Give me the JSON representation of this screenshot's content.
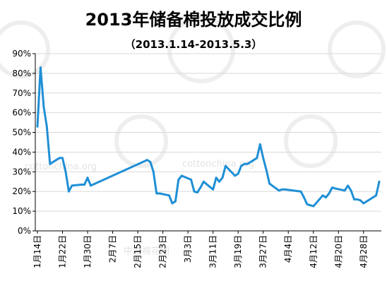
{
  "chart_data": {
    "type": "line",
    "title": "2013年储备棉投放成交比例",
    "subtitle": "（2013.1.14-2013.5.3）",
    "xlabel": "",
    "ylabel": "",
    "ylim": [
      0,
      90
    ],
    "y_ticks": [
      0,
      10,
      20,
      30,
      40,
      50,
      60,
      70,
      80,
      90
    ],
    "y_tick_labels": [
      "0%",
      "10%",
      "20%",
      "30%",
      "40%",
      "50%",
      "60%",
      "70%",
      "80%",
      "90%"
    ],
    "x_start": "2013-01-14",
    "x_end": "2013-05-03",
    "x_tick_dates": [
      "2013-01-14",
      "2013-01-22",
      "2013-01-30",
      "2013-02-07",
      "2013-02-15",
      "2013-02-23",
      "2013-03-03",
      "2013-03-11",
      "2013-03-19",
      "2013-03-27",
      "2013-04-04",
      "2013-04-12",
      "2013-04-20",
      "2013-04-28"
    ],
    "x_tick_labels": [
      "1月14日",
      "1月22日",
      "1月30日",
      "2月7日",
      "2月15日",
      "2月23日",
      "3月3日",
      "3月11日",
      "3月19日",
      "3月27日",
      "4月4日",
      "4月12日",
      "4月20日",
      "4月28日"
    ],
    "grid": true,
    "legend": "none",
    "series": [
      {
        "color": "#1f8fd6",
        "x": [
          "2013-01-14",
          "2013-01-15",
          "2013-01-16",
          "2013-01-17",
          "2013-01-18",
          "2013-01-21",
          "2013-01-22",
          "2013-01-23",
          "2013-01-24",
          "2013-01-25",
          "2013-01-28",
          "2013-01-29",
          "2013-01-30",
          "2013-01-31",
          "2013-02-18",
          "2013-02-19",
          "2013-02-20",
          "2013-02-21",
          "2013-02-22",
          "2013-02-25",
          "2013-02-26",
          "2013-02-27",
          "2013-02-28",
          "2013-03-01",
          "2013-03-04",
          "2013-03-05",
          "2013-03-06",
          "2013-03-07",
          "2013-03-08",
          "2013-03-11",
          "2013-03-12",
          "2013-03-13",
          "2013-03-14",
          "2013-03-15",
          "2013-03-18",
          "2013-03-19",
          "2013-03-20",
          "2013-03-21",
          "2013-03-22",
          "2013-03-25",
          "2013-03-26",
          "2013-03-27",
          "2013-03-28",
          "2013-03-29",
          "2013-04-01",
          "2013-04-02",
          "2013-04-03",
          "2013-04-08",
          "2013-04-09",
          "2013-04-10",
          "2013-04-11",
          "2013-04-12",
          "2013-04-15",
          "2013-04-16",
          "2013-04-17",
          "2013-04-18",
          "2013-04-19",
          "2013-04-22",
          "2013-04-23",
          "2013-04-24",
          "2013-04-25",
          "2013-04-26",
          "2013-04-27",
          "2013-04-28",
          "2013-05-02",
          "2013-05-03"
        ],
        "values": [
          53,
          83,
          63,
          53,
          34,
          37,
          37,
          30,
          20,
          23,
          23.5,
          23.5,
          27,
          23,
          36,
          35,
          30,
          19,
          19,
          18,
          14,
          15,
          26,
          28,
          26,
          20,
          19.5,
          22,
          25,
          21,
          27,
          25,
          27,
          33,
          28,
          29,
          33,
          34,
          34,
          37,
          44,
          37,
          31,
          24,
          20.5,
          21,
          21,
          20,
          17,
          13.5,
          13,
          12.5,
          18,
          17,
          19,
          22,
          21.5,
          20.5,
          23,
          20.5,
          16,
          16,
          15.5,
          14,
          18,
          25
        ]
      }
    ]
  },
  "watermark": {
    "texts": [
      "cottonchina.org",
      "cottonchina.org",
      "中国棉花网"
    ]
  }
}
